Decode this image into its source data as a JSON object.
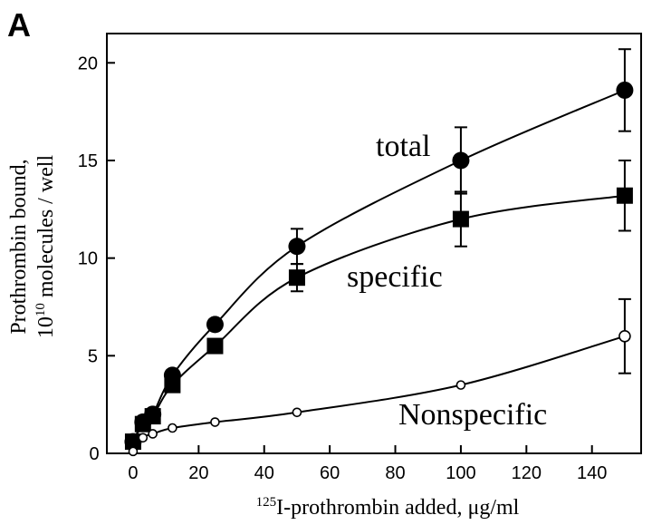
{
  "chart_data": {
    "type": "line",
    "panel_label": "A",
    "xlabel": {
      "sup": "125",
      "main": "I-prothrombin added, μg/ml"
    },
    "ylabel": {
      "line1": "Prothrombin bound,",
      "line2_pre": "10",
      "line2_sup": "10",
      "line2_post": " molecules / well"
    },
    "xlim": [
      -8,
      155
    ],
    "ylim": [
      0,
      21.5
    ],
    "x_ticks": [
      0,
      20,
      40,
      60,
      80,
      100,
      120,
      140
    ],
    "y_ticks": [
      5,
      10,
      15,
      20
    ],
    "x_tick_labels": [
      "0",
      "20",
      "40",
      "60",
      "80",
      "100",
      "120",
      "140"
    ],
    "y_tick_labels": [
      "5",
      "10",
      "15",
      "20"
    ],
    "y_origin_label": "0",
    "grid": false,
    "series": [
      {
        "name": "total",
        "marker": "filled-circle",
        "points": [
          {
            "x": 0,
            "y": 0.6,
            "err": null
          },
          {
            "x": 3,
            "y": 1.6,
            "err": null
          },
          {
            "x": 6,
            "y": 2.0,
            "err": null
          },
          {
            "x": 12,
            "y": 4.0,
            "err": null
          },
          {
            "x": 25,
            "y": 6.6,
            "err": null
          },
          {
            "x": 50,
            "y": 10.6,
            "err": 0.9
          },
          {
            "x": 100,
            "y": 15.0,
            "err": 1.7
          },
          {
            "x": 150,
            "y": 18.6,
            "err": 2.1
          }
        ]
      },
      {
        "name": "specific",
        "marker": "filled-square",
        "points": [
          {
            "x": 0,
            "y": 0.6,
            "err": null
          },
          {
            "x": 3,
            "y": 1.5,
            "err": null
          },
          {
            "x": 6,
            "y": 1.9,
            "err": null
          },
          {
            "x": 12,
            "y": 3.5,
            "err": null
          },
          {
            "x": 25,
            "y": 5.5,
            "err": null
          },
          {
            "x": 50,
            "y": 9.0,
            "err": 0.7
          },
          {
            "x": 100,
            "y": 12.0,
            "err": 1.4
          },
          {
            "x": 150,
            "y": 13.2,
            "err": 1.8
          }
        ]
      },
      {
        "name": "Nonspecific",
        "marker": "open-circle",
        "points": [
          {
            "x": 0,
            "y": 0.1,
            "err": null
          },
          {
            "x": 3,
            "y": 0.8,
            "err": null
          },
          {
            "x": 6,
            "y": 1.0,
            "err": null
          },
          {
            "x": 12,
            "y": 1.3,
            "err": null
          },
          {
            "x": 25,
            "y": 1.6,
            "err": null
          },
          {
            "x": 50,
            "y": 2.1,
            "err": null
          },
          {
            "x": 100,
            "y": 3.5,
            "err": null
          },
          {
            "x": 150,
            "y": 6.0,
            "err": 1.9
          }
        ]
      }
    ]
  }
}
